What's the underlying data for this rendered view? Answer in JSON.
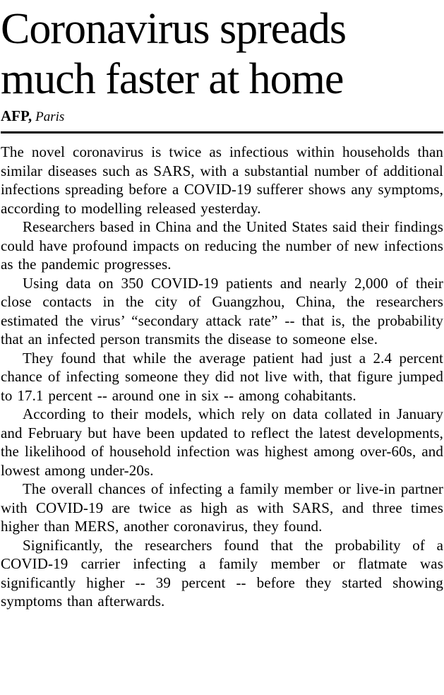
{
  "article": {
    "headline": "Coronavirus spreads much faster at home",
    "byline": {
      "source": "AFP,",
      "location": "Paris"
    },
    "paragraphs": [
      "The novel coronavirus is twice as infectious within households than similar diseases such as SARS, with a substantial number of additional infections spreading before a COVID-19 sufferer shows any symptoms, according to modelling released yesterday.",
      "Researchers based in China and the United States said their findings could have profound impacts on reducing the number of new infections as the pandemic progresses.",
      "Using data on 350 COVID-19 patients and nearly 2,000 of their close contacts in the city of Guangzhou, China, the researchers estimated the virus’ “secondary attack rate” -- that is, the probability that an infected person transmits the disease to someone else.",
      "They found that while the average patient had just a 2.4 percent chance of infecting someone they did not live with, that figure jumped to 17.1 percent -- around one in six -- among cohabitants.",
      "According to their models, which rely on data collated in January and February but have been updated to reflect the latest developments, the likelihood of household infection was highest among over-60s, and lowest among under-20s.",
      "The overall chances of infecting a family member or live-in partner with COVID-19 are twice as high as with SARS, and three times higher than MERS, another coronavirus, they found.",
      "Significantly, the researchers found that the probability of a COVID-19 carrier infecting a family member or flatmate was significantly higher -- 39 percent -- before they started showing symptoms than afterwards."
    ]
  }
}
